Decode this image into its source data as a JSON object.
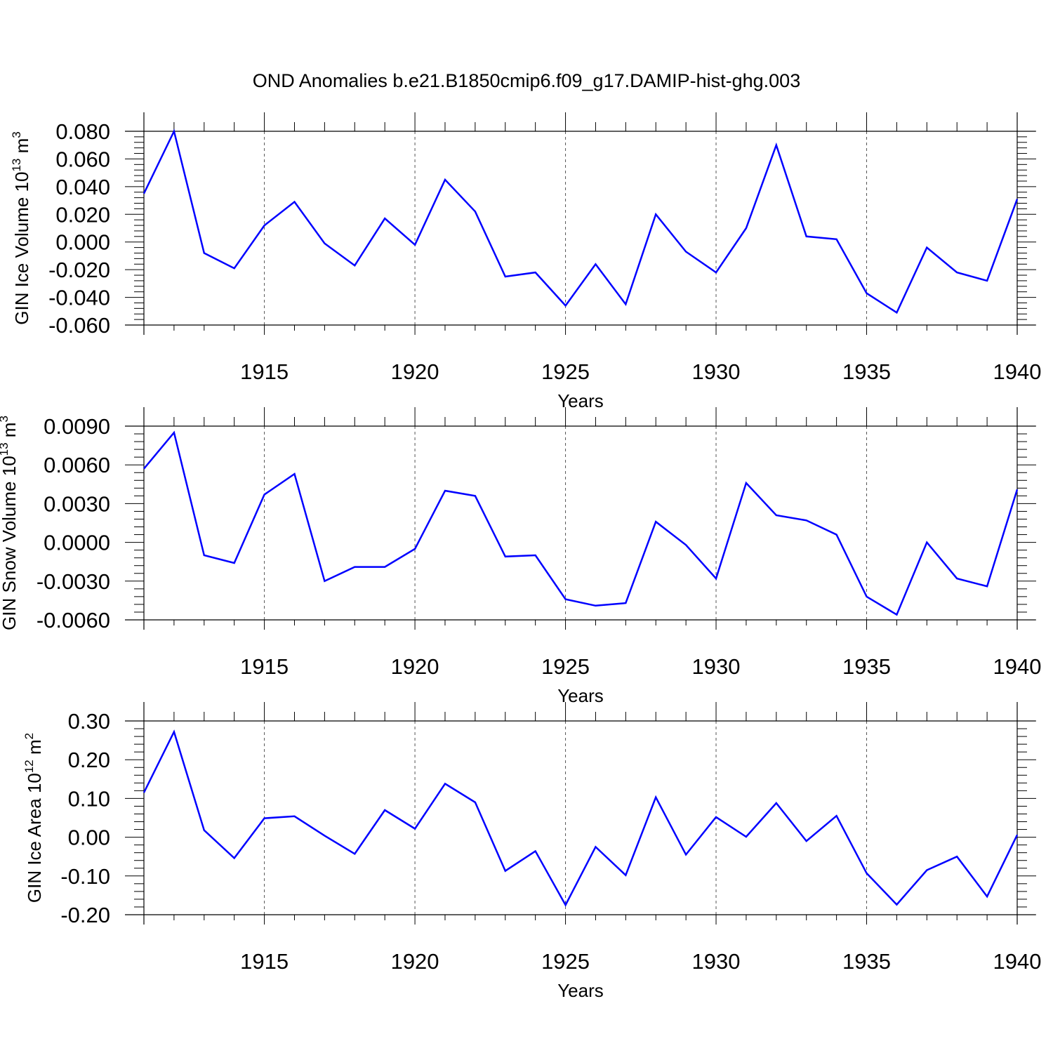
{
  "title": "OND Anomalies b.e21.B1850cmip6.f09_g17.DAMIP-hist-ghg.003",
  "line_color": "#0000ff",
  "chart_data": [
    {
      "type": "line",
      "ylabel": "GIN Ice Volume 10",
      "ylabel_exp": "13",
      "ylabel_unit": " m",
      "ylabel_unit_exp": "3",
      "xlabel": "Years",
      "xlim": [
        1911,
        1940
      ],
      "ylim": [
        -0.06,
        0.08
      ],
      "yticks": [
        "0.080",
        "0.060",
        "0.040",
        "0.020",
        "0.000",
        "-0.020",
        "-0.040",
        "-0.060"
      ],
      "yticks_values": [
        0.08,
        0.06,
        0.04,
        0.02,
        0.0,
        -0.02,
        -0.04,
        -0.06
      ],
      "xticks": [
        "1915",
        "1920",
        "1925",
        "1930",
        "1935",
        "1940"
      ],
      "xticks_values": [
        1915,
        1920,
        1925,
        1930,
        1935,
        1940
      ],
      "grid": "vertical dashed at major x ticks",
      "x": [
        1911,
        1912,
        1913,
        1914,
        1915,
        1916,
        1917,
        1918,
        1919,
        1920,
        1921,
        1922,
        1923,
        1924,
        1925,
        1926,
        1927,
        1928,
        1929,
        1930,
        1931,
        1932,
        1933,
        1934,
        1935,
        1936,
        1937,
        1938,
        1939,
        1940
      ],
      "series": [
        {
          "values": [
            0.035,
            0.08,
            -0.008,
            -0.019,
            0.012,
            0.029,
            -0.001,
            -0.017,
            0.017,
            -0.002,
            0.045,
            0.022,
            -0.025,
            -0.022,
            -0.046,
            -0.016,
            -0.045,
            0.02,
            -0.007,
            -0.022,
            0.01,
            0.07,
            0.004,
            0.002,
            -0.037,
            -0.051,
            -0.004,
            -0.022,
            -0.028,
            0.031
          ]
        }
      ]
    },
    {
      "type": "line",
      "ylabel": "GIN Snow Volume 10",
      "ylabel_exp": "13",
      "ylabel_unit": " m",
      "ylabel_unit_exp": "3",
      "xlabel": "Years",
      "xlim": [
        1911,
        1940
      ],
      "ylim": [
        -0.006,
        0.009
      ],
      "yticks": [
        "0.0090",
        "0.0060",
        "0.0030",
        "0.0000",
        "-0.0030",
        "-0.0060"
      ],
      "yticks_values": [
        0.009,
        0.006,
        0.003,
        0.0,
        -0.003,
        -0.006
      ],
      "xticks": [
        "1915",
        "1920",
        "1925",
        "1930",
        "1935",
        "1940"
      ],
      "xticks_values": [
        1915,
        1920,
        1925,
        1930,
        1935,
        1940
      ],
      "grid": "vertical dashed at major x ticks",
      "x": [
        1911,
        1912,
        1913,
        1914,
        1915,
        1916,
        1917,
        1918,
        1919,
        1920,
        1921,
        1922,
        1923,
        1924,
        1925,
        1926,
        1927,
        1928,
        1929,
        1930,
        1931,
        1932,
        1933,
        1934,
        1935,
        1936,
        1937,
        1938,
        1939,
        1940
      ],
      "series": [
        {
          "values": [
            0.0057,
            0.0085,
            -0.001,
            -0.0016,
            0.0037,
            0.0053,
            -0.003,
            -0.0019,
            -0.0019,
            -0.0005,
            0.004,
            0.0036,
            -0.0011,
            -0.001,
            -0.0044,
            -0.0049,
            -0.0047,
            0.0016,
            -0.0002,
            -0.0028,
            0.0046,
            0.0021,
            0.0017,
            0.0006,
            -0.0042,
            -0.0056,
            0.0,
            -0.0028,
            -0.0034,
            0.0041
          ]
        }
      ]
    },
    {
      "type": "line",
      "ylabel": "GIN Ice Area 10",
      "ylabel_exp": "12",
      "ylabel_unit": " m",
      "ylabel_unit_exp": "2",
      "xlabel": "Years",
      "xlim": [
        1911,
        1940
      ],
      "ylim": [
        -0.2,
        0.3
      ],
      "yticks": [
        "0.30",
        "0.20",
        "0.10",
        "0.00",
        "-0.10",
        "-0.20"
      ],
      "yticks_values": [
        0.3,
        0.2,
        0.1,
        0.0,
        -0.1,
        -0.2
      ],
      "xticks": [
        "1915",
        "1920",
        "1925",
        "1930",
        "1935",
        "1940"
      ],
      "xticks_values": [
        1915,
        1920,
        1925,
        1930,
        1935,
        1940
      ],
      "grid": "vertical dashed at major x ticks",
      "x": [
        1911,
        1912,
        1913,
        1914,
        1915,
        1916,
        1917,
        1918,
        1919,
        1920,
        1921,
        1922,
        1923,
        1924,
        1925,
        1926,
        1927,
        1928,
        1929,
        1930,
        1931,
        1932,
        1933,
        1934,
        1935,
        1936,
        1937,
        1938,
        1939,
        1940
      ],
      "series": [
        {
          "values": [
            0.115,
            0.272,
            0.018,
            -0.054,
            0.049,
            0.054,
            0.004,
            -0.043,
            0.07,
            0.022,
            0.138,
            0.09,
            -0.087,
            -0.036,
            -0.175,
            -0.025,
            -0.098,
            0.103,
            -0.045,
            0.052,
            0.001,
            0.088,
            -0.01,
            0.055,
            -0.093,
            -0.174,
            -0.085,
            -0.05,
            -0.153,
            0.006
          ]
        }
      ]
    }
  ]
}
